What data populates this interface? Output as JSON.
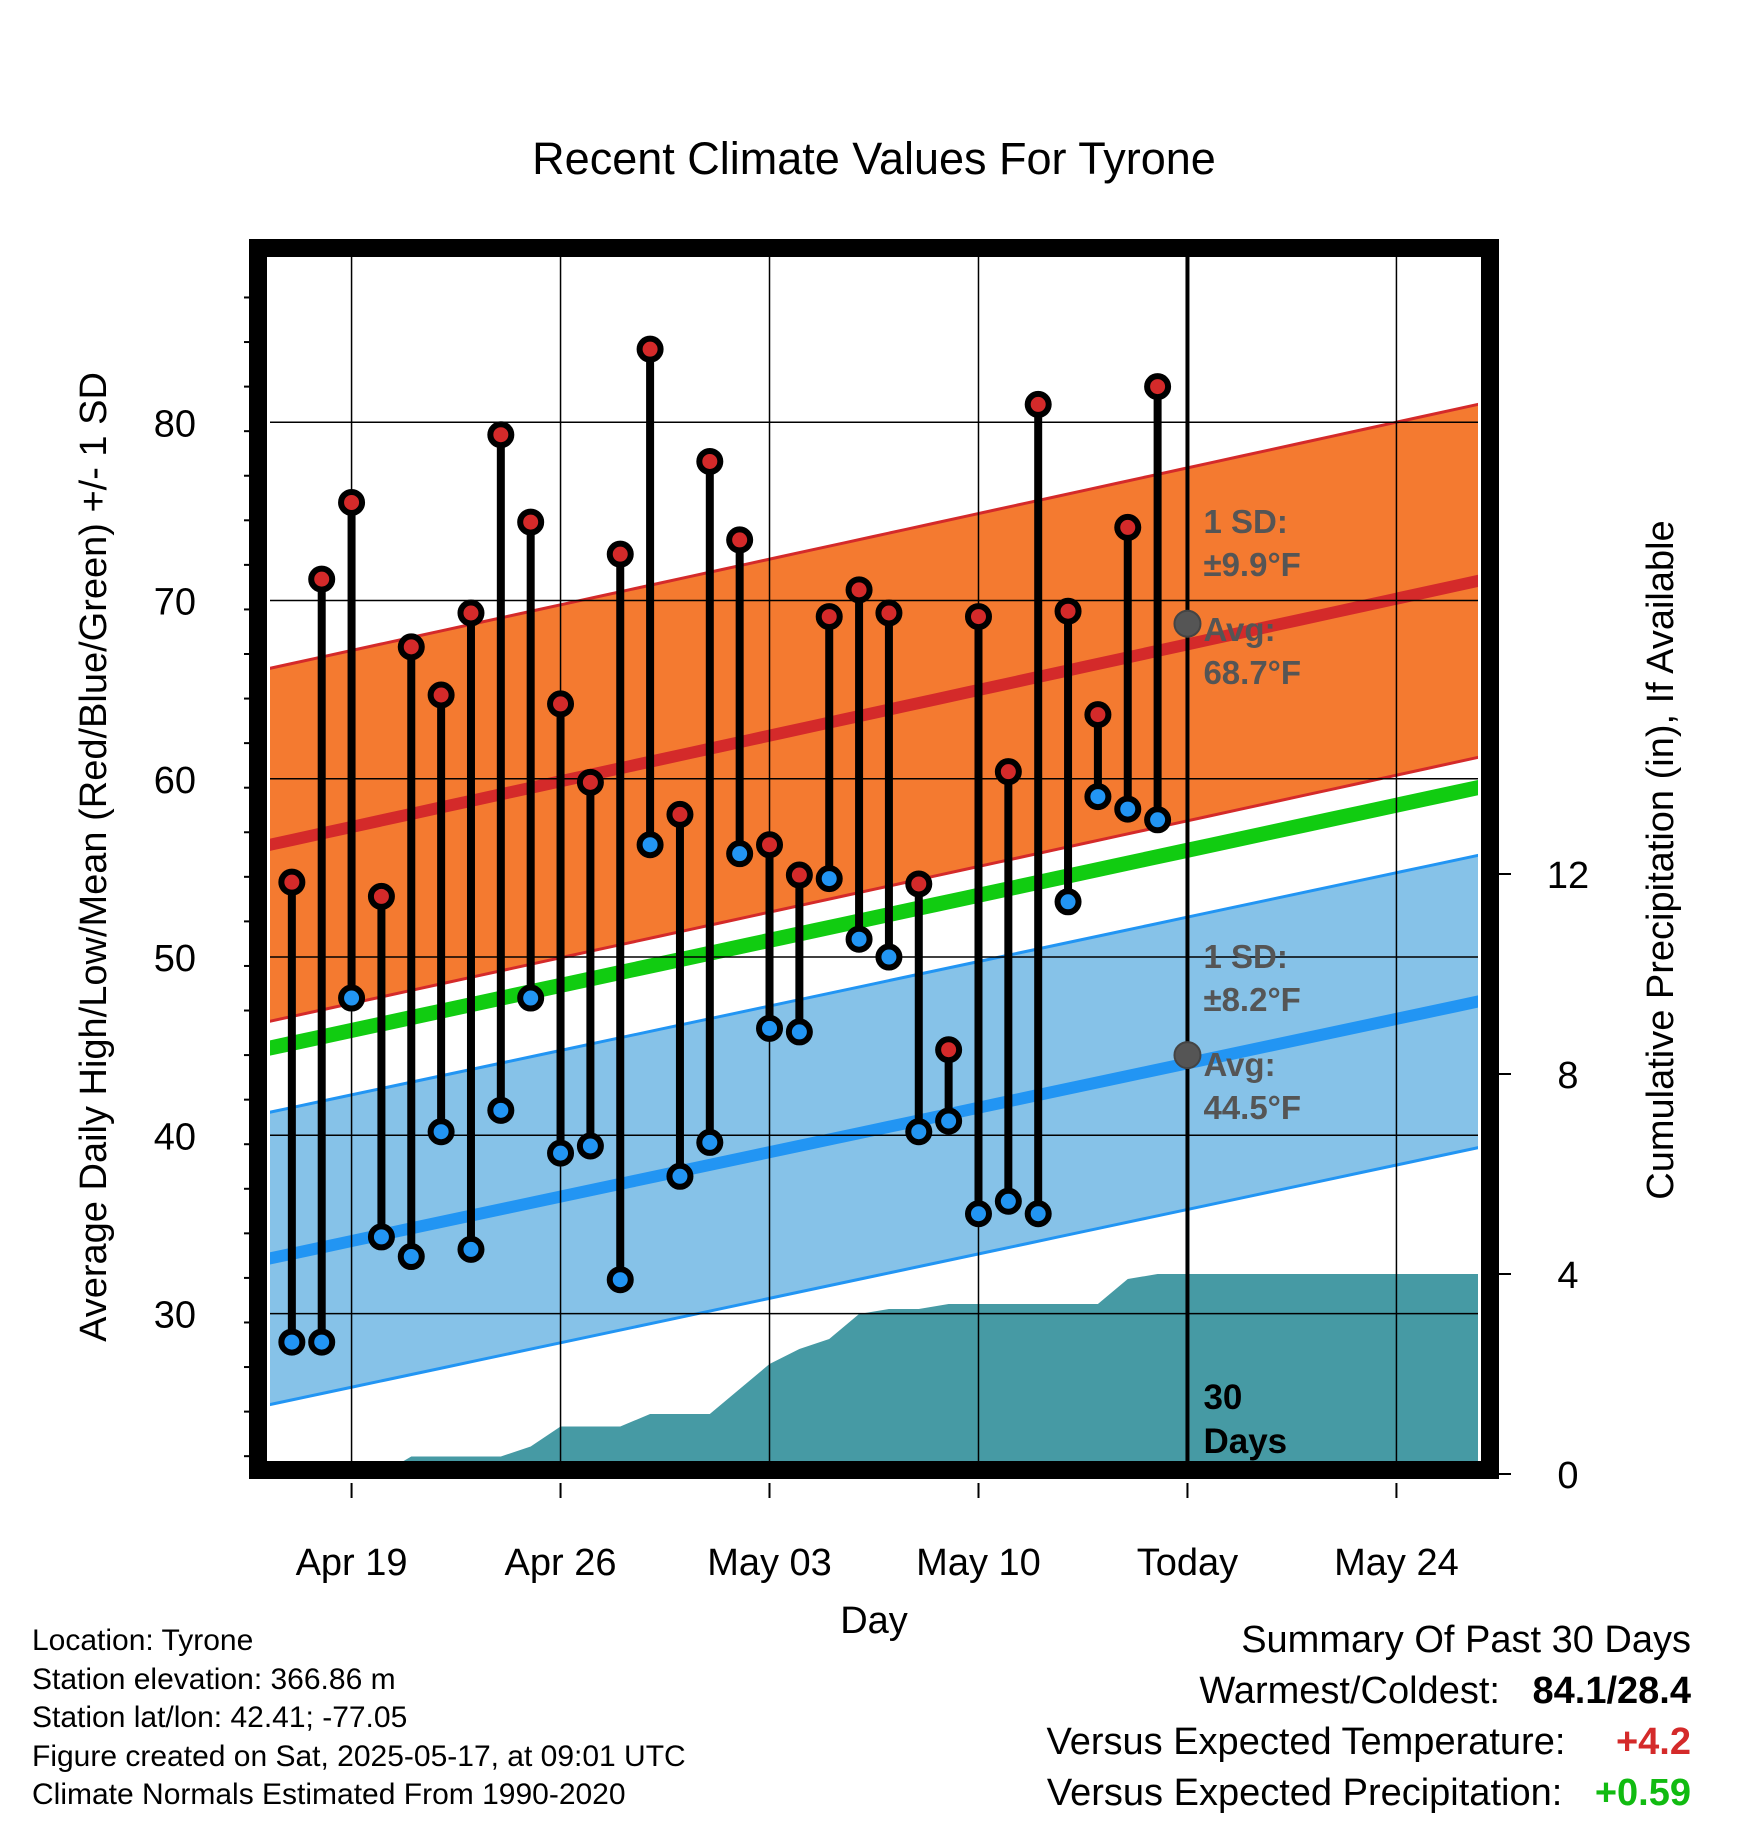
{
  "chart_data": {
    "type": "line",
    "title": "Recent Climate Values For Tyrone",
    "xlabel": "Day",
    "ylabel_left": "Average Daily High/Low/Mean (Red/Blue/Green) +/- 1 SD",
    "ylabel_right": "Cumulative Precipitation (in), If Available",
    "x_tick_labels": [
      "Apr 19",
      "Apr 26",
      "May 03",
      "May 10",
      "Today",
      "May 24"
    ],
    "x_tick_days": [
      2,
      9,
      16,
      23,
      30,
      37
    ],
    "y_left_ticks": [
      30,
      40,
      50,
      60,
      70,
      80
    ],
    "y_right_ticks": [
      0,
      4,
      8,
      12
    ],
    "ylim_left": [
      21,
      90
    ],
    "ylim_right": [
      0,
      24.6
    ],
    "xlim_days": [
      -1,
      40
    ],
    "grid": true,
    "days": [
      0,
      1,
      2,
      3,
      4,
      5,
      6,
      7,
      8,
      9,
      10,
      11,
      12,
      13,
      14,
      15,
      16,
      17,
      18,
      19,
      20,
      21,
      22,
      23,
      24,
      25,
      26,
      27,
      28,
      29
    ],
    "daily_high": [
      54.2,
      71.2,
      75.5,
      53.4,
      67.4,
      64.7,
      69.3,
      79.3,
      74.4,
      64.2,
      59.8,
      72.6,
      84.1,
      58.0,
      77.8,
      73.4,
      56.3,
      54.6,
      69.1,
      70.6,
      69.3,
      54.1,
      44.8,
      69.1,
      60.4,
      81.0,
      69.4,
      63.6,
      74.1,
      82.0
    ],
    "daily_low": [
      28.4,
      28.4,
      47.7,
      34.3,
      33.2,
      40.2,
      33.6,
      41.4,
      47.7,
      39.0,
      39.4,
      31.9,
      56.3,
      37.7,
      39.6,
      55.8,
      46.0,
      45.8,
      54.4,
      51.0,
      50.0,
      40.2,
      40.8,
      35.6,
      36.3,
      35.6,
      53.1,
      59.0,
      58.3,
      57.7
    ],
    "normal_high": {
      "start": 56.2,
      "end": 71.2,
      "today": 68.7
    },
    "normal_high_sd": 9.9,
    "normal_low": {
      "start": 33.0,
      "end": 47.6,
      "today": 44.5
    },
    "normal_low_sd": 8.2,
    "normal_mean": {
      "start": 44.8,
      "end": 59.6
    },
    "cumulative_precip": {
      "days": [
        0,
        3,
        4,
        5,
        6,
        7,
        8,
        9,
        10,
        11,
        12,
        13,
        14,
        15,
        16,
        17,
        18,
        19,
        20,
        21,
        22,
        23,
        24,
        25,
        26,
        27,
        28,
        29,
        40
      ],
      "values": [
        0.0,
        0.0,
        0.35,
        0.35,
        0.35,
        0.35,
        0.55,
        0.95,
        0.95,
        0.95,
        1.2,
        1.2,
        1.2,
        1.7,
        2.2,
        2.5,
        2.7,
        3.2,
        3.3,
        3.3,
        3.4,
        3.4,
        3.4,
        3.4,
        3.4,
        3.4,
        3.9,
        4.0,
        4.0
      ]
    },
    "annotations": {
      "high_sd_label": "1 SD:",
      "high_sd_value": "±9.9°F",
      "high_avg_label": "Avg:",
      "high_avg_value": "68.7°F",
      "low_sd_label": "1 SD:",
      "low_sd_value": "±8.2°F",
      "low_avg_label": "Avg:",
      "low_avg_value": "44.5°F",
      "days_label_1": "30",
      "days_label_2": "Days"
    },
    "colors": {
      "high_band": "#f47a30",
      "high_line": "#d42a2a",
      "low_band": "#86c2e8",
      "low_line": "#2295f3",
      "mean_line": "#11cc11",
      "precip": "#469aa4",
      "high_marker": "#d42a2a",
      "low_marker": "#2295f3",
      "annotation": "#555555"
    }
  },
  "footer_left": {
    "location": "Location: Tyrone",
    "elevation": "Station elevation: 366.86 m",
    "latlon": "Station lat/lon: 42.41; -77.05",
    "created": "Figure created on Sat, 2025-05-17, at 09:01 UTC",
    "normals": "Climate Normals Estimated From 1990-2020"
  },
  "summary": {
    "heading": "Summary Of Past 30 Days",
    "warm_cold_label": "Warmest/Coldest:",
    "warm_cold_value": "84.1/28.4",
    "temp_label": "Versus Expected Temperature:",
    "temp_value": "+4.2",
    "temp_color": "#d42a2a",
    "precip_label": "Versus Expected Precipitation:",
    "precip_value": "+0.59",
    "precip_color": "#11bb11"
  }
}
